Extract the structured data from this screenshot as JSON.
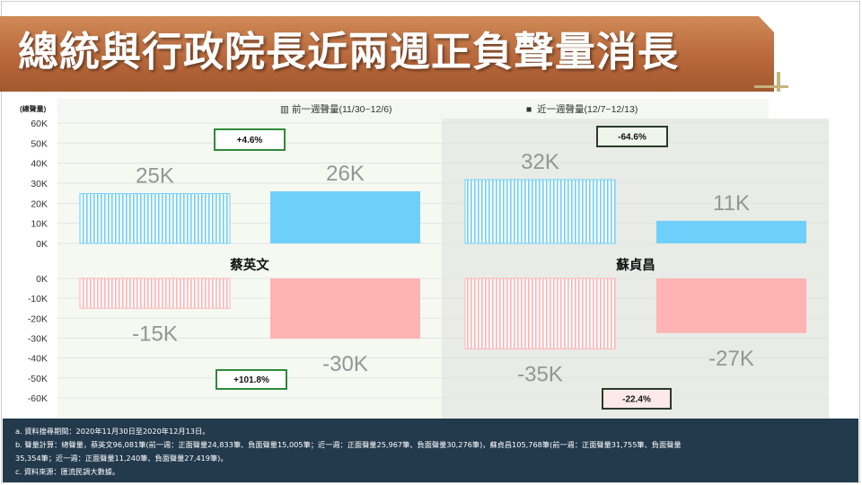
{
  "title": "總統與行政院長近兩週正負聲量消長",
  "legend": {
    "prev": "前一週聲量(11/30~12/6)",
    "recent": "近一週聲量(12/7~12/13)"
  },
  "colors": {
    "positive": "#6ed0fa",
    "negative": "#ffb3b3",
    "right_panel_bg": "#e9ebe7",
    "left_panel_bg": "#f6f9f2",
    "title_bg": "#b9683b",
    "footer_bg": "#233a4d"
  },
  "chart_data": {
    "type": "bar",
    "ylabel": "(總聲量)",
    "ylim_positive": [
      0,
      60000
    ],
    "ylim_negative": [
      -60000,
      0
    ],
    "yticks_positive": [
      "60K",
      "50K",
      "40K",
      "30K",
      "20K",
      "10K",
      "0K"
    ],
    "yticks_negative": [
      "0K",
      "-10K",
      "-20K",
      "-30K",
      "-40K",
      "-50K",
      "-60K"
    ],
    "categories": [
      "蔡英文",
      "蘇貞昌"
    ],
    "series": [
      {
        "name": "前一週聲量(11/30~12/6)",
        "positive": [
          24833,
          31755
        ],
        "negative": [
          -15005,
          -35354
        ],
        "positive_labels": [
          "25K",
          "32K"
        ],
        "negative_labels": [
          "-15K",
          "-35K"
        ]
      },
      {
        "name": "近一週聲量(12/7~12/13)",
        "positive": [
          25967,
          11240
        ],
        "negative": [
          -30276,
          -27419
        ],
        "positive_labels": [
          "26K",
          "11K"
        ],
        "negative_labels": [
          "-30K",
          "-27K"
        ]
      }
    ],
    "change_positive": [
      "+4.6%",
      "-64.6%"
    ],
    "change_negative": [
      "+101.8%",
      "-22.4%"
    ]
  },
  "footer": {
    "line1": "a. 資料搜尋期間：2020年11月30日至2020年12月13日。",
    "line2": "b. 聲量計算：總聲量，蔡英文96,081筆(前一週：正面聲量24,833筆、負面聲量15,005筆；近一週：正面聲量25,967筆、負面聲量30,276筆)，蘇貞昌105,768筆(前一週：正面聲量31,755筆、負面聲量",
    "line3": "35,354筆；近一週：正面聲量11,240筆、負面聲量27,419筆)。",
    "line4": "c. 資料來源：匯流民調大數據。"
  }
}
